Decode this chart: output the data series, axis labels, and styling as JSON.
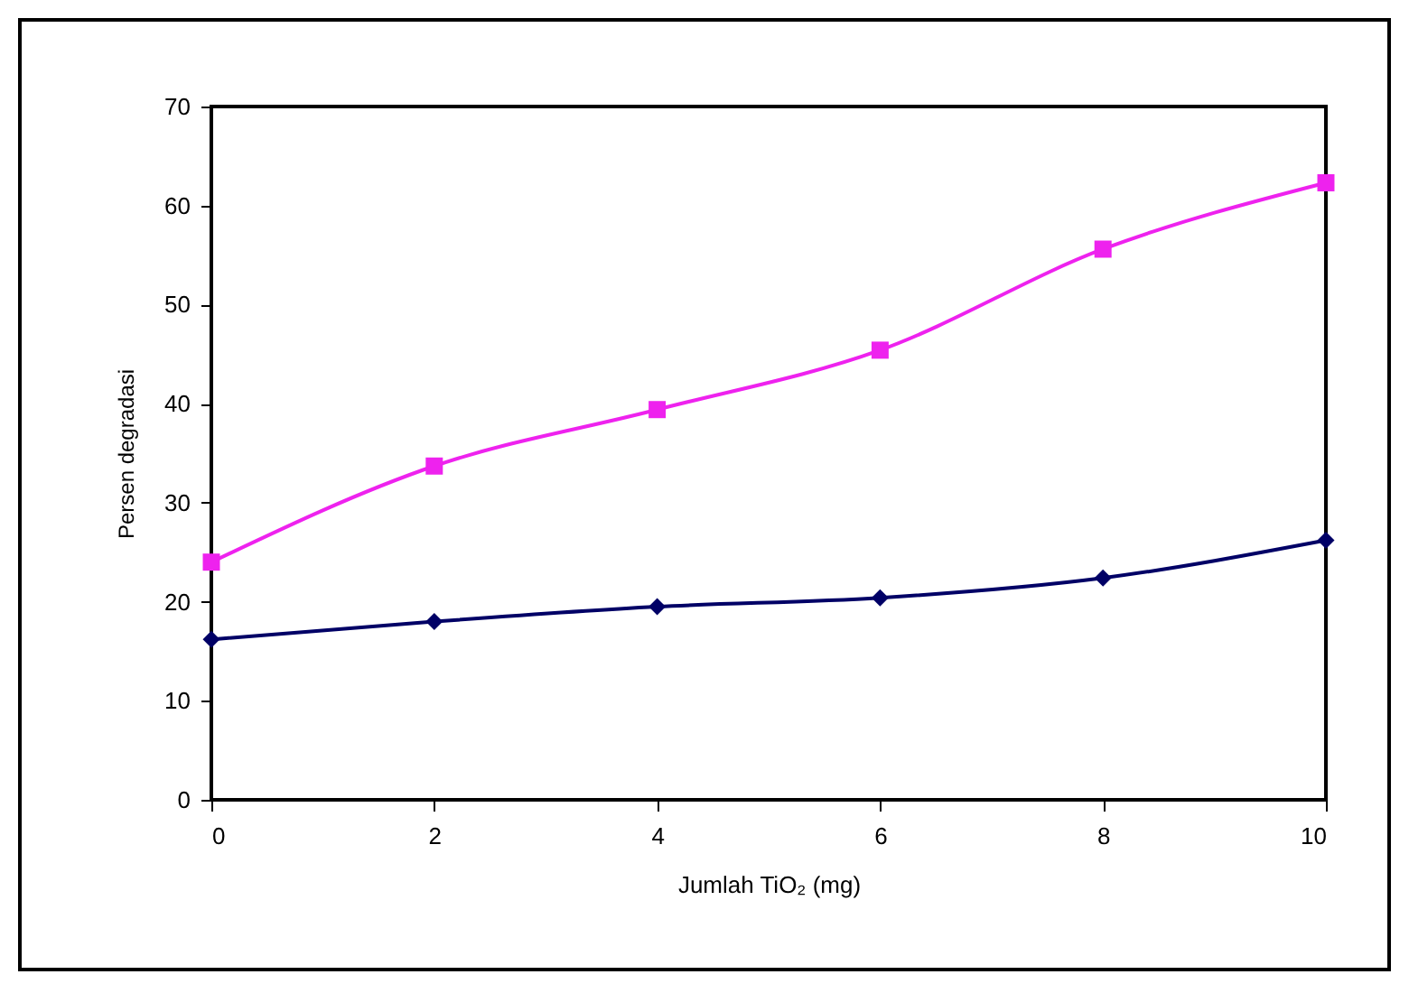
{
  "chart_data": {
    "type": "line",
    "xlabel": "Jumlah TiO₂ (mg)",
    "ylabel": "Persen degradasi",
    "x": [
      0,
      2,
      4,
      6,
      8,
      10
    ],
    "series": [
      {
        "color": "#ee22ee",
        "marker": "square",
        "values": [
          24,
          33.7,
          39.4,
          45.4,
          55.6,
          62.3
        ]
      },
      {
        "color": "#000066",
        "marker": "diamond",
        "values": [
          16.2,
          18,
          19.5,
          20.4,
          22.4,
          26.2
        ]
      }
    ],
    "xlim": [
      0,
      10
    ],
    "xticks": [
      0,
      2,
      4,
      6,
      8,
      10
    ],
    "ylim": [
      0,
      70
    ],
    "yticks": [
      0,
      10,
      20,
      30,
      40,
      50,
      60,
      70
    ],
    "grid": false
  }
}
